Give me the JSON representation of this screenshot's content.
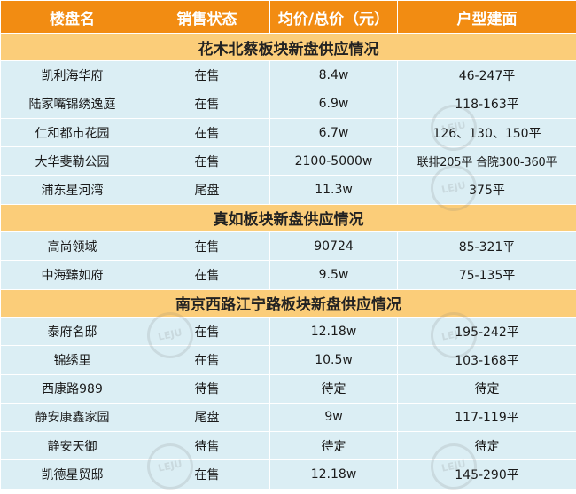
{
  "table": {
    "headers": [
      "楼盘名",
      "销售状态",
      "均价/总价（元）",
      "户型建面"
    ],
    "sections": [
      {
        "title": "花木北蔡板块新盘供应情况",
        "rows": [
          [
            "凯利海华府",
            "在售",
            "8.4w",
            "46-247平"
          ],
          [
            "陆家嘴锦绣逸庭",
            "在售",
            "6.9w",
            "118-163平"
          ],
          [
            "仁和都市花园",
            "在售",
            "6.7w",
            "126、130、150平"
          ],
          [
            "大华斐勒公园",
            "在售",
            "2100-5000w",
            "联排205平 合院300-360平"
          ],
          [
            "浦东星河湾",
            "尾盘",
            "11.3w",
            "375平"
          ]
        ]
      },
      {
        "title": "真如板块新盘供应情况",
        "rows": [
          [
            "高尚领域",
            "在售",
            "90724",
            "85-321平"
          ],
          [
            "中海臻如府",
            "在售",
            "9.5w",
            "75-135平"
          ]
        ]
      },
      {
        "title": "南京西路江宁路板块新盘供应情况",
        "rows": [
          [
            "泰府名邸",
            "在售",
            "12.18w",
            "195-242平"
          ],
          [
            "锦绣里",
            "在售",
            "10.5w",
            "103-168平"
          ],
          [
            "西康路989",
            "待售",
            "待定",
            "待定"
          ],
          [
            "静安康鑫家园",
            "尾盘",
            "9w",
            "117-119平"
          ],
          [
            "静安天御",
            "待售",
            "待定",
            "待定"
          ],
          [
            "凯德星贸邸",
            "在售",
            "12.18w",
            "145-290平"
          ]
        ]
      }
    ]
  },
  "watermark": {
    "text": "LEJU"
  },
  "colors": {
    "header_bg": "#f28c12",
    "section_bg": "#fbcd79",
    "row_bg": "#dbeef4"
  }
}
